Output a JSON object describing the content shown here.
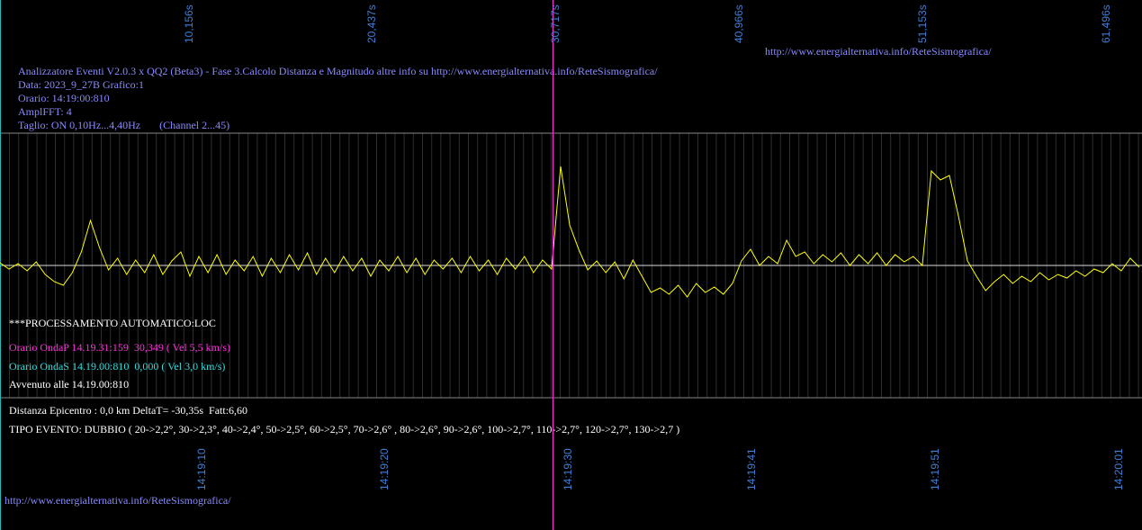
{
  "top_axis": {
    "labels": [
      "10,156s",
      "20,437s",
      "30,717s",
      "40,966s",
      "51,153s",
      "61,496s"
    ]
  },
  "top_url": "http://www.energialternativa.info/ReteSismografica/",
  "info": [
    "Analizzatore Eventi V2.0.3 x QQ2 (Beta3) - Fase 3.Calcolo Distanza e Magnitudo altre info su http://www.energialternativa.info/ReteSismografica/",
    "Data: 2023_9_27B Grafico:1",
    "Orario: 14:19:00:810",
    "AmplFFT: 4",
    "Taglio: ON 0,10Hz...4,40Hz       (Channel 2...45)"
  ],
  "trace": {
    "color": "#ffff00",
    "values": [
      3,
      -4,
      2,
      -6,
      4,
      -10,
      -18,
      -22,
      -8,
      15,
      50,
      20,
      -5,
      8,
      -10,
      6,
      -8,
      12,
      -10,
      5,
      15,
      -12,
      10,
      -8,
      12,
      -10,
      6,
      -6,
      10,
      -12,
      8,
      -8,
      12,
      -5,
      14,
      -10,
      8,
      -8,
      10,
      -6,
      8,
      -12,
      6,
      -6,
      10,
      -8,
      8,
      -10,
      6,
      -4,
      8,
      -8,
      10,
      -6,
      6,
      -10,
      8,
      -4,
      10,
      -8,
      6,
      -4,
      110,
      45,
      18,
      -5,
      5,
      -8,
      4,
      -15,
      6,
      -12,
      -30,
      -25,
      -32,
      -22,
      -35,
      -20,
      -30,
      -24,
      -32,
      -20,
      5,
      18,
      0,
      10,
      2,
      28,
      10,
      15,
      2,
      12,
      4,
      14,
      0,
      12,
      2,
      14,
      0,
      12,
      4,
      10,
      0,
      105,
      95,
      100,
      55,
      5,
      -12,
      -28,
      -18,
      -10,
      -20,
      -12,
      -18,
      -8,
      -16,
      -10,
      -14,
      -6,
      -12,
      -4,
      -8,
      2,
      -6,
      8,
      -2
    ]
  },
  "processing": {
    "title": "***PROCESSAMENTO AUTOMATICO:LOC",
    "onda_p": "Orario OndaP 14.19.31:159  30,349 ( Vel 5,5 km/s)",
    "onda_s": "Orario OndaS 14.19.00:810  0,000 ( Vel 3,0 km/s)",
    "avvenuto": "Avvenuto alle 14.19.00:810"
  },
  "result": {
    "distance": "Distanza Epicentro : 0,0 km DeltaT= -30,35s  Fatt:6,60",
    "event_type": "TIPO EVENTO: DUBBIO ( 20->2,2°, 30->2,3°, 40->2,4°, 50->2,5°, 60->2,5°, 70->2,6° , 80->2,6°, 90->2,6°, 100->2,7°, 110->2,7°, 120->2,7°, 130->2,7 )"
  },
  "bottom_axis": {
    "labels": [
      "14:19:10",
      "14:19:20",
      "14:19:30",
      "14:19:41",
      "14:19:51",
      "14:20:01"
    ]
  },
  "footer_url": "http://www.energialternativa.info/ReteSismografica/"
}
